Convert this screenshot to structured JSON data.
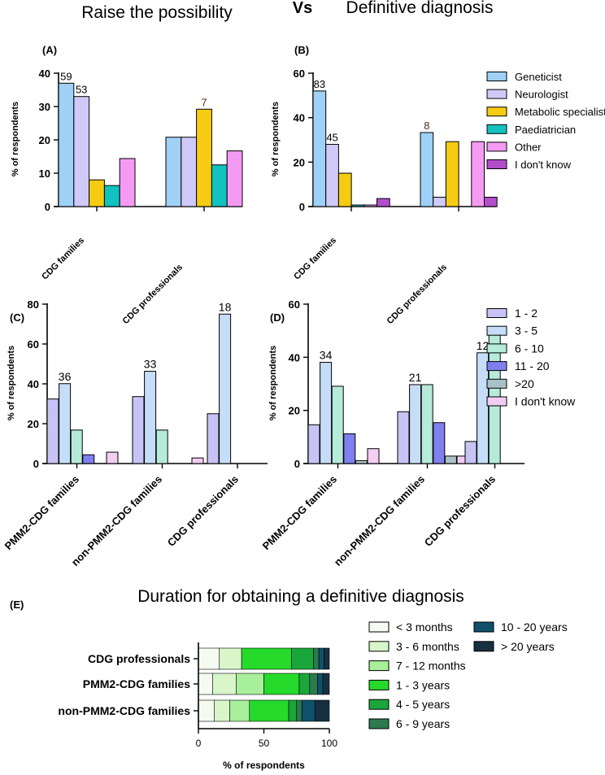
{
  "headers": {
    "left": "Raise the possibility",
    "vs": "Vs",
    "right": "Definitive diagnosis"
  },
  "chart_data": [
    {
      "id": "A",
      "panel_label": "(A)",
      "type": "bar",
      "ylabel": "% of respondents",
      "ylim": [
        0,
        40
      ],
      "yticks": [
        0,
        10,
        20,
        30,
        40
      ],
      "categories": [
        "CDG families",
        "CDG professionals"
      ],
      "series": [
        {
          "name": "Geneticist",
          "color": "#9fd0f5",
          "values": [
            37,
            20.8
          ]
        },
        {
          "name": "Neurologist",
          "color": "#cfcaf7",
          "values": [
            33,
            20.8
          ]
        },
        {
          "name": "Metabolic specialist",
          "color": "#f5cc12",
          "values": [
            8,
            29.2
          ]
        },
        {
          "name": "Paediatrician",
          "color": "#12c2c0",
          "values": [
            6.3,
            12.5
          ]
        },
        {
          "name": "Other",
          "color": "#f59af2",
          "values": [
            14.4,
            16.7
          ]
        }
      ],
      "annotations": [
        {
          "category": 0,
          "series": 0,
          "text": "59",
          "color": "#000000"
        },
        {
          "category": 0,
          "series": 1,
          "text": "53",
          "color": "#000000"
        },
        {
          "category": 1,
          "series": 2,
          "text": "7",
          "color": "#5a2a1f"
        }
      ]
    },
    {
      "id": "B",
      "panel_label": "(B)",
      "type": "bar",
      "ylabel": "% of respondents",
      "ylim": [
        0,
        60
      ],
      "yticks": [
        0,
        20,
        40,
        60
      ],
      "categories": [
        "CDG families",
        "CDG professionals"
      ],
      "series": [
        {
          "name": "Geneticist",
          "color": "#9fd0f5",
          "values": [
            52,
            33.3
          ]
        },
        {
          "name": "Neurologist",
          "color": "#cfcaf7",
          "values": [
            28,
            4.2
          ]
        },
        {
          "name": "Metabolic specialist",
          "color": "#f5cc12",
          "values": [
            15,
            29.2
          ]
        },
        {
          "name": "Paediatrician",
          "color": "#12c2c0",
          "values": [
            0.7,
            0
          ]
        },
        {
          "name": "Other",
          "color": "#f59af2",
          "values": [
            0.7,
            29.2
          ]
        },
        {
          "name": "I don't know",
          "color": "#b34dcc",
          "values": [
            3.6,
            4.2
          ]
        }
      ],
      "annotations": [
        {
          "category": 0,
          "series": 0,
          "text": "83",
          "color": "#000000"
        },
        {
          "category": 0,
          "series": 1,
          "text": "45",
          "color": "#000000"
        },
        {
          "category": 1,
          "series": 0,
          "text": "8",
          "color": "#5a2a1f"
        }
      ],
      "legend": [
        "Geneticist",
        "Neurologist",
        "Metabolic specialist",
        "Paediatrician",
        "Other",
        "I don't know"
      ]
    },
    {
      "id": "C",
      "panel_label": "(C)",
      "type": "bar",
      "ylabel": "% of respondents",
      "ylim": [
        0,
        80
      ],
      "yticks": [
        0,
        20,
        40,
        60,
        80
      ],
      "categories": [
        "PMM2-CDG families",
        "non-PMM2-CDG families",
        "CDG professionals"
      ],
      "series": [
        {
          "name": "1 - 2",
          "color": "#c7c3f5",
          "values": [
            32.4,
            33.6,
            25
          ]
        },
        {
          "name": "3 - 5",
          "color": "#c6ddf8",
          "values": [
            40.1,
            46.3,
            75
          ]
        },
        {
          "name": "6 - 10",
          "color": "#b6ead9",
          "values": [
            16.8,
            16.8,
            0
          ]
        },
        {
          "name": "11 - 20",
          "color": "#7f7ff0",
          "values": [
            4.4,
            0,
            0
          ]
        },
        {
          "name": ">20",
          "color": "#a9c2c8",
          "values": [
            0,
            0,
            0
          ]
        },
        {
          "name": "I don't know",
          "color": "#f3cdf2",
          "values": [
            5.7,
            2.8,
            0
          ]
        }
      ],
      "annotations": [
        {
          "category": 0,
          "series": 1,
          "text": "36",
          "color": "#000000"
        },
        {
          "category": 1,
          "series": 1,
          "text": "33",
          "color": "#000000"
        },
        {
          "category": 2,
          "series": 1,
          "text": "18",
          "color": "#000000"
        }
      ]
    },
    {
      "id": "D",
      "panel_label": "(D)",
      "type": "bar",
      "ylabel": "% of respondents",
      "ylim": [
        0,
        60
      ],
      "yticks": [
        0,
        20,
        40,
        60
      ],
      "categories": [
        "PMM2-CDG families",
        "non-PMM2-CDG families",
        "CDG professionals"
      ],
      "series": [
        {
          "name": "1 - 2",
          "color": "#c7c3f5",
          "values": [
            14.6,
            19.5,
            8.3
          ]
        },
        {
          "name": "3 - 5",
          "color": "#c6ddf8",
          "values": [
            38.1,
            29.7,
            41.7
          ]
        },
        {
          "name": "6 - 10",
          "color": "#b6ead9",
          "values": [
            29.1,
            29.7,
            50
          ]
        },
        {
          "name": "11 - 20",
          "color": "#7f7ff0",
          "values": [
            11.2,
            15.4,
            0
          ]
        },
        {
          "name": ">20",
          "color": "#a9c2c8",
          "values": [
            1.1,
            2.8,
            0
          ]
        },
        {
          "name": "I don't know",
          "color": "#f3cdf2",
          "values": [
            5.6,
            2.8,
            0
          ]
        }
      ],
      "annotations": [
        {
          "category": 0,
          "series": 1,
          "text": "34",
          "color": "#000000"
        },
        {
          "category": 1,
          "series": 1,
          "text": "21",
          "color": "#000000"
        },
        {
          "category": 2,
          "series": 1,
          "text": "12",
          "color": "#000000"
        }
      ],
      "legend": [
        "1 - 2",
        "3 - 5",
        "6 - 10",
        "11 - 20",
        ">20",
        "I don't know"
      ]
    },
    {
      "id": "E",
      "panel_label": "(E)",
      "type": "stacked-bar-horizontal",
      "title": "Duration for obtaining a definitive diagnosis",
      "xlabel": "% of respondents",
      "xlim": [
        0,
        100
      ],
      "xticks": [
        0,
        50,
        100
      ],
      "categories": [
        "CDG professionals",
        "PMM2-CDG families",
        "non-PMM2-CDG families"
      ],
      "series": [
        {
          "name": "< 3 months",
          "color": "#f6fbf2",
          "values": [
            16,
            11,
            12
          ]
        },
        {
          "name": "3 - 6 months",
          "color": "#d8f6c9",
          "values": [
            17,
            18,
            12
          ]
        },
        {
          "name": "7 - 12 months",
          "color": "#a7ef9a",
          "values": [
            0,
            21,
            15
          ]
        },
        {
          "name": "1 - 3 years",
          "color": "#25da2a",
          "values": [
            38,
            27,
            30
          ]
        },
        {
          "name": "4 - 5 years",
          "color": "#1aa63a",
          "values": [
            17,
            8,
            6
          ]
        },
        {
          "name": "6 - 9 years",
          "color": "#2c7a4e",
          "values": [
            4,
            6,
            4
          ]
        },
        {
          "name": "10 - 20 years",
          "color": "#10506b",
          "values": [
            4,
            4,
            10
          ]
        },
        {
          "name": "> 20 years",
          "color": "#16303f",
          "values": [
            4,
            5,
            11
          ]
        }
      ],
      "legend": [
        "< 3 months",
        "3 - 6 months",
        "7 - 12 months",
        "1 - 3 years",
        "4 - 5 years",
        "6 - 9 years",
        "10 - 20 years",
        "> 20 years"
      ]
    }
  ]
}
